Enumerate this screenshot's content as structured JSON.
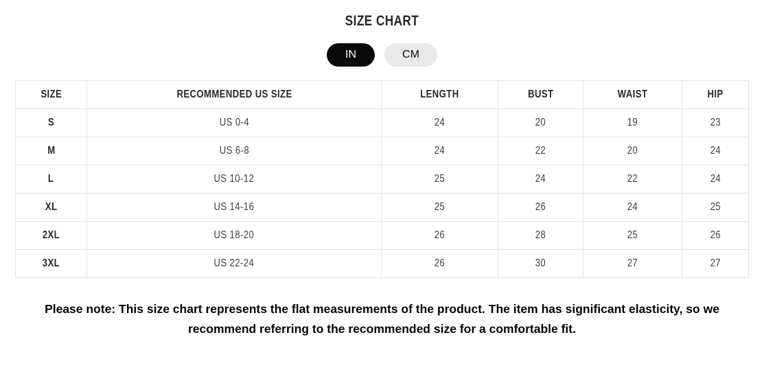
{
  "title": "SIZE CHART",
  "unit_toggle": {
    "options": [
      {
        "label": "IN",
        "selected": true
      },
      {
        "label": "CM",
        "selected": false
      }
    ]
  },
  "table": {
    "columns": [
      "SIZE",
      "RECOMMENDED US SIZE",
      "LENGTH",
      "BUST",
      "WAIST",
      "HIP"
    ],
    "rows": [
      [
        "S",
        "US 0-4",
        "24",
        "20",
        "19",
        "23"
      ],
      [
        "M",
        "US 6-8",
        "24",
        "22",
        "20",
        "24"
      ],
      [
        "L",
        "US 10-12",
        "25",
        "24",
        "22",
        "24"
      ],
      [
        "XL",
        "US 14-16",
        "25",
        "26",
        "24",
        "25"
      ],
      [
        "2XL",
        "US 18-20",
        "26",
        "28",
        "25",
        "26"
      ],
      [
        "3XL",
        "US 22-24",
        "26",
        "30",
        "27",
        "27"
      ]
    ]
  },
  "note": {
    "text": "Please note: This size chart represents the flat measurements of the product. The item has significant elasticity, so we recommend referring to the recommended size for a comfortable fit."
  },
  "colors": {
    "pill-active-bg": "#0a0a0a",
    "pill-active-text": "#ffffff",
    "pill-inactive-bg": "#e9e9e9",
    "pill-inactive-text": "#111111",
    "table-border": "#e0e4ee",
    "text-dark": "#26272b",
    "text-cell": "#3c3e45",
    "note-text": "#050505"
  }
}
